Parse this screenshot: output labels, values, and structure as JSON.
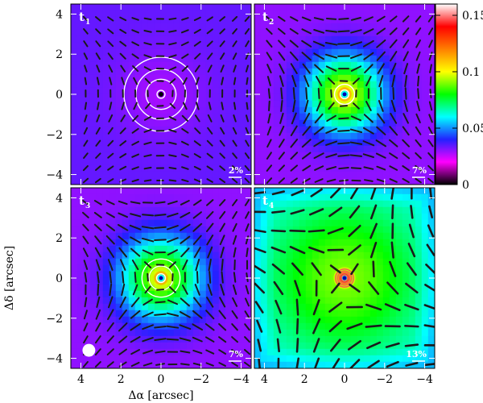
{
  "chart_data": {
    "type": "heatmap",
    "xlabel": "Δα [arcsec]",
    "ylabel": "Δδ [arcsec]",
    "xlim": [
      4.5,
      -4.5
    ],
    "ylim": [
      -4.5,
      4.5
    ],
    "xticks": [
      4,
      2,
      0,
      -2,
      -4
    ],
    "yticks": [
      4,
      2,
      0,
      -2,
      -4
    ],
    "colorbar": {
      "min": 0,
      "max": 0.16,
      "ticks": [
        0,
        0.05,
        0.1,
        0.15
      ],
      "tick_labels": [
        "0",
        "0.05",
        "0.1",
        "0.15"
      ],
      "colors": [
        "#000000",
        "#ff00ff",
        "#2222ff",
        "#00ffff",
        "#00ff00",
        "#ffff00",
        "#ff7f00",
        "#ff0000",
        "#ffffff"
      ]
    },
    "panels": [
      {
        "label": "t",
        "sub": "1",
        "scale_label": "2%",
        "beam": false,
        "peak_offset": 0.045,
        "peak_amp": 0.0,
        "peak_width": 1.2,
        "background": 0.034,
        "swirl": 0.0,
        "vector_len": [
          0.25,
          0.35
        ],
        "contour_radii": [
          0.2,
          0.75,
          1.25,
          1.85
        ]
      },
      {
        "label": "t",
        "sub": "2",
        "scale_label": "7%",
        "beam": false,
        "peak_offset": 0.03,
        "peak_amp": 0.07,
        "peak_width": 1.3,
        "background": 0.03,
        "swirl": 0.1,
        "vector_len": [
          0.2,
          0.55
        ],
        "contour_radii": [
          0.22,
          0.5
        ]
      },
      {
        "label": "t",
        "sub": "3",
        "scale_label": "7%",
        "beam": true,
        "peak_offset": 0.03,
        "peak_amp": 0.065,
        "peak_width": 1.4,
        "background": 0.03,
        "swirl": 0.15,
        "vector_len": [
          0.2,
          0.55
        ],
        "contour_radii": [
          0.22,
          0.6,
          0.95
        ]
      },
      {
        "label": "t",
        "sub": "4",
        "scale_label": "13%",
        "beam": false,
        "peak_offset": 0.05,
        "peak_amp": 0.04,
        "peak_width": 2.2,
        "background": 0.045,
        "swirl": 0.9,
        "vector_len": [
          0.45,
          0.75
        ],
        "contour_radii": [
          0.15,
          0.25,
          0.35,
          0.45
        ]
      }
    ]
  }
}
